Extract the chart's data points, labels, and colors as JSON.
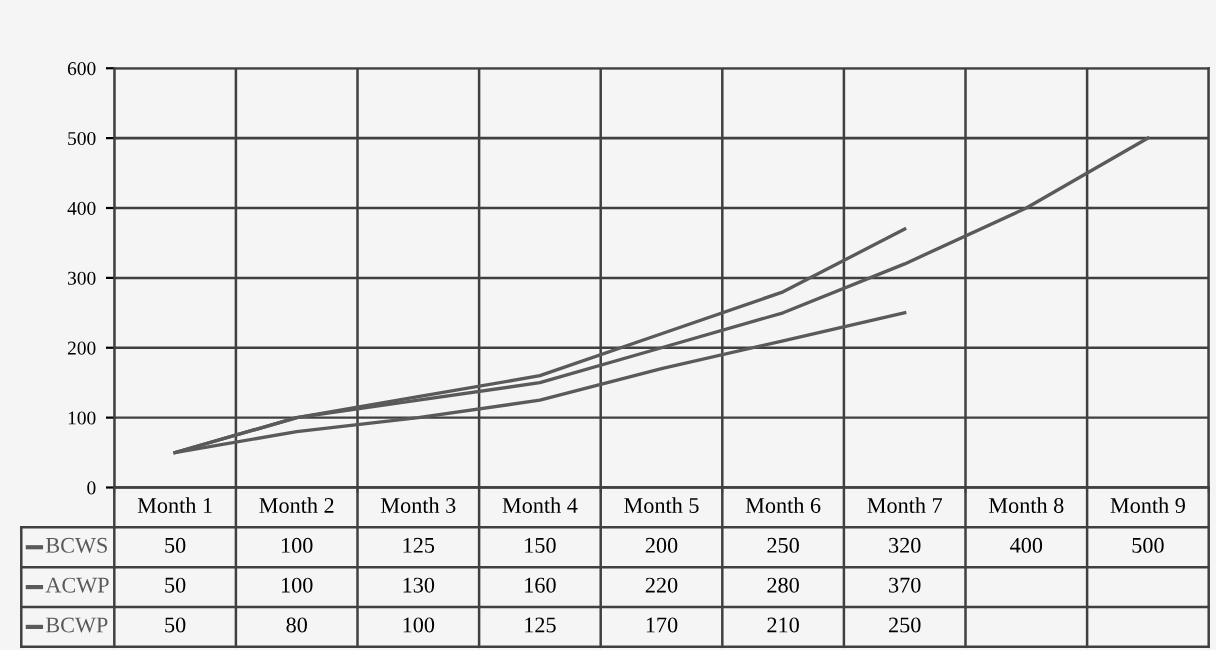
{
  "chart_data": {
    "type": "line",
    "categories": [
      "Month 1",
      "Month 2",
      "Month 3",
      "Month 4",
      "Month 5",
      "Month 6",
      "Month 7",
      "Month 8",
      "Month 9"
    ],
    "series": [
      {
        "name": "BCWS",
        "color": "#5a5a5a",
        "values": [
          50,
          100,
          125,
          150,
          200,
          250,
          320,
          400,
          500
        ]
      },
      {
        "name": "ACWP",
        "color": "#5a5a5a",
        "values": [
          50,
          100,
          130,
          160,
          220,
          280,
          370,
          null,
          null
        ]
      },
      {
        "name": "BCWP",
        "color": "#5a5a5a",
        "values": [
          50,
          80,
          100,
          125,
          170,
          210,
          250,
          null,
          null
        ]
      }
    ],
    "ylim": [
      0,
      600
    ],
    "yticks": [
      0,
      100,
      200,
      300,
      400,
      500,
      600
    ],
    "grid": true,
    "data_labels": true,
    "marker": "none",
    "line_style": "solid",
    "legend": "bottom left"
  }
}
